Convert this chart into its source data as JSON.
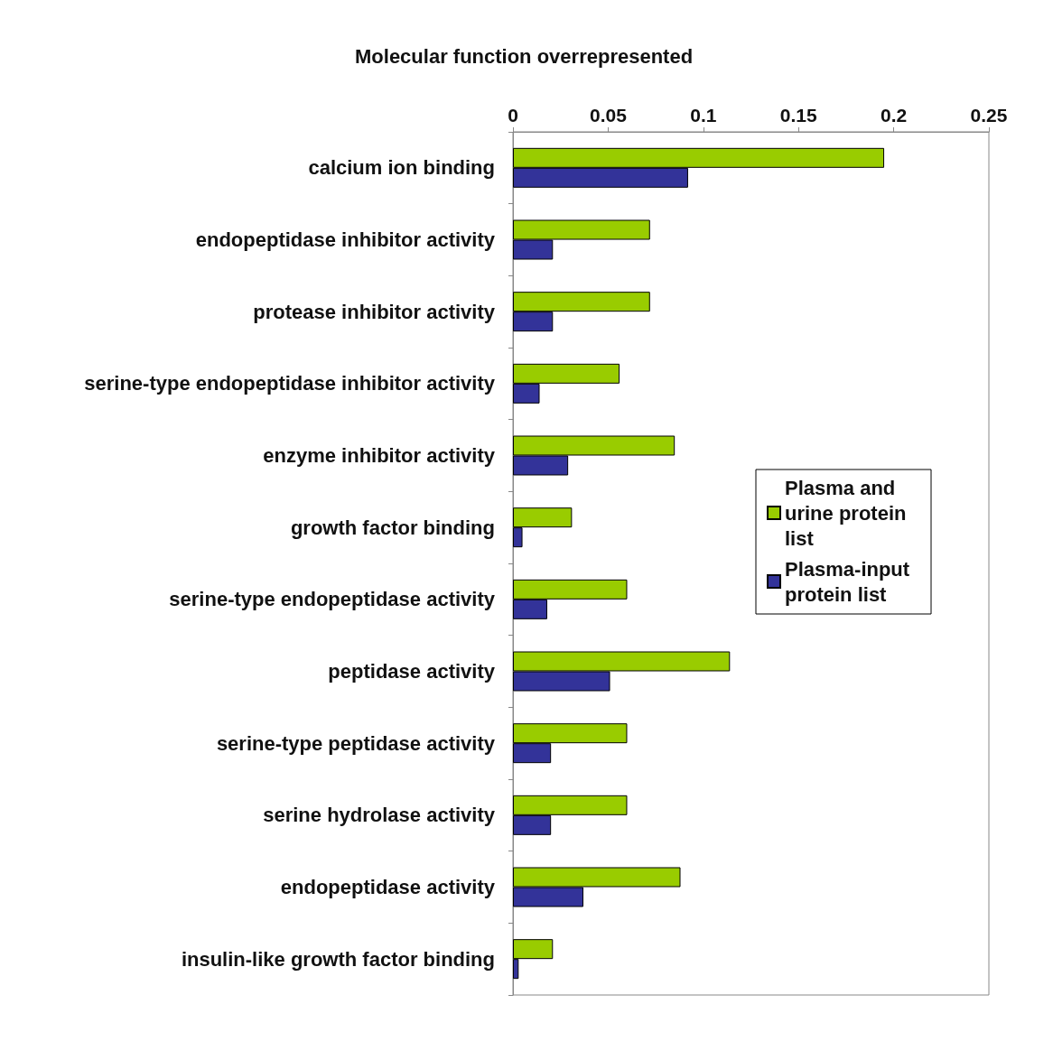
{
  "chart_data": {
    "type": "bar",
    "orientation": "horizontal",
    "title": "Molecular function overrepresented",
    "categories": [
      "calcium ion binding",
      "endopeptidase inhibitor activity",
      "protease inhibitor activity",
      "serine-type endopeptidase inhibitor activity",
      "enzyme inhibitor activity",
      "growth factor binding",
      "serine-type endopeptidase activity",
      "peptidase activity",
      "serine-type peptidase activity",
      "serine hydrolase activity",
      "endopeptidase activity",
      "insulin-like growth factor binding"
    ],
    "series": [
      {
        "name": "Plasma and urine protein list",
        "color": "#99cc00",
        "values": [
          0.195,
          0.072,
          0.072,
          0.056,
          0.085,
          0.031,
          0.06,
          0.114,
          0.06,
          0.06,
          0.088,
          0.021
        ]
      },
      {
        "name": "Plasma-input protein list",
        "color": "#333399",
        "values": [
          0.092,
          0.021,
          0.021,
          0.014,
          0.029,
          0.005,
          0.018,
          0.051,
          0.02,
          0.02,
          0.037,
          0.003
        ]
      }
    ],
    "xlim": [
      0,
      0.25
    ],
    "xticks": [
      0,
      0.05,
      0.1,
      0.15,
      0.2,
      0.25
    ],
    "grid": false,
    "legend": "right"
  }
}
